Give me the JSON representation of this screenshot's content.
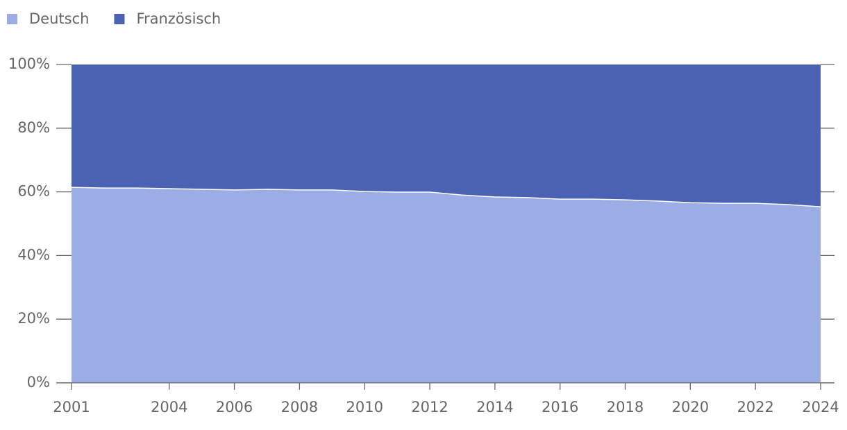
{
  "chart_data": {
    "type": "stacked-area",
    "x": [
      2001,
      2002,
      2003,
      2004,
      2005,
      2006,
      2007,
      2008,
      2009,
      2010,
      2011,
      2012,
      2013,
      2014,
      2015,
      2016,
      2017,
      2018,
      2019,
      2020,
      2021,
      2022,
      2023,
      2024
    ],
    "series": [
      {
        "name": "Deutsch",
        "color": "#9badE4",
        "values": [
          61.4,
          61.2,
          61.2,
          61.0,
          60.8,
          60.6,
          60.8,
          60.6,
          60.6,
          60.1,
          59.9,
          59.9,
          59.0,
          58.4,
          58.2,
          57.7,
          57.7,
          57.5,
          57.1,
          56.6,
          56.4,
          56.4,
          56.0,
          55.3
        ]
      },
      {
        "name": "Französisch",
        "color": "#4a62b1",
        "values": [
          38.6,
          38.8,
          38.8,
          39.0,
          39.2,
          39.4,
          39.2,
          39.4,
          39.4,
          39.9,
          40.1,
          40.1,
          41.0,
          41.6,
          41.8,
          42.3,
          42.3,
          42.5,
          42.9,
          43.4,
          43.6,
          43.6,
          44.0,
          44.7
        ]
      }
    ],
    "xlim": [
      2001,
      2024
    ],
    "xticks": [
      2001,
      2004,
      2006,
      2008,
      2010,
      2012,
      2014,
      2016,
      2018,
      2020,
      2022,
      2024
    ],
    "ylim": [
      0,
      100
    ],
    "yticks": [
      {
        "value": 0,
        "label": "0%"
      },
      {
        "value": 20,
        "label": "20%"
      },
      {
        "value": 40,
        "label": "40%"
      },
      {
        "value": 60,
        "label": "60%"
      },
      {
        "value": 80,
        "label": "80%"
      },
      {
        "value": 100,
        "label": "100%"
      }
    ],
    "legend": "top-left"
  }
}
